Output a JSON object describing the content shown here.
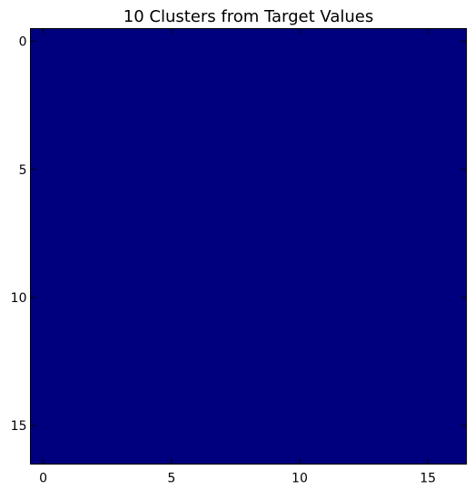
{
  "chart_data": {
    "type": "heatmap",
    "title": "10 Clusters from Target Values",
    "xlabel": "",
    "ylabel": "",
    "x_ticks": [
      0,
      5,
      10,
      15
    ],
    "y_ticks": [
      0,
      5,
      10,
      15
    ],
    "x_range": [
      -0.5,
      16.5
    ],
    "y_range": [
      -0.5,
      16.5
    ],
    "y_inverted": true,
    "grid": false,
    "rows": 17,
    "cols": 17,
    "fill_value": 0,
    "fill_color": "#00007f",
    "colormap": "jet"
  }
}
